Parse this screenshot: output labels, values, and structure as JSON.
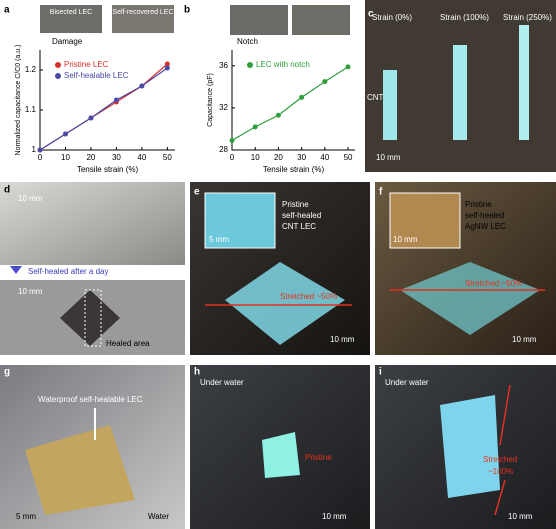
{
  "chart_data": [
    {
      "type": "line",
      "panel": "a",
      "insets": [
        "Bisected LEC",
        "Self-recovered LEC"
      ],
      "annotation": "Damage",
      "xlabel": "Tensile strain (%)",
      "ylabel": "Normalized capacitance C/C0 (a.u.)",
      "x": [
        0,
        10,
        20,
        30,
        40,
        50
      ],
      "xlim": [
        0,
        53
      ],
      "xticks": [
        0,
        10,
        20,
        30,
        40,
        50
      ],
      "ylim": [
        1,
        1.25
      ],
      "yticks": [
        1,
        1.1,
        1.2
      ],
      "legend": "upper left",
      "series": [
        {
          "name": "Pristine LEC",
          "color": "#d9302c",
          "values": [
            1,
            1.04,
            1.08,
            1.12,
            1.16,
            1.215
          ]
        },
        {
          "name": "Self-healable LEC",
          "color": "#4a4aa8",
          "values": [
            1,
            1.04,
            1.08,
            1.125,
            1.16,
            1.205
          ]
        }
      ]
    },
    {
      "type": "line",
      "panel": "b",
      "annotation": "Notch",
      "xlabel": "Tensile strain (%)",
      "ylabel": "Capacitance (pF)",
      "x": [
        0,
        10,
        20,
        30,
        40,
        50
      ],
      "xlim": [
        0,
        53
      ],
      "xticks": [
        0,
        10,
        20,
        30,
        40,
        50
      ],
      "ylim": [
        28,
        37.5
      ],
      "yticks": [
        28,
        32,
        36
      ],
      "legend": "upper left",
      "series": [
        {
          "name": "LEC with notch",
          "color": "#2e9e3a",
          "values": [
            28.9,
            30.2,
            31.3,
            33.0,
            34.5,
            35.9
          ]
        }
      ]
    }
  ],
  "photos": [
    {
      "letter": "c",
      "labels": [
        "Strain (0%)",
        "Strain (100%)",
        "Strain (250%)",
        "CNT",
        "10 mm"
      ]
    },
    {
      "letter": "d",
      "labels": [
        "10 mm",
        "Self-healed after a day",
        "10 mm",
        "Healed area"
      ]
    },
    {
      "letter": "e",
      "labels": [
        "Pristine",
        "self-healed",
        "CNT LEC",
        "5 mm",
        "Stretched ~50%",
        "10 mm"
      ]
    },
    {
      "letter": "f",
      "labels": [
        "10 mm",
        "Pristine",
        "self-healed",
        "AgNW LEC",
        "Stretched ~50%",
        "10 mm"
      ]
    },
    {
      "letter": "g",
      "labels": [
        "Waterproof self-healable LEC",
        "5 mm",
        "Water"
      ]
    },
    {
      "letter": "h",
      "labels": [
        "Under water",
        "Pristine",
        "10 mm"
      ]
    },
    {
      "letter": "i",
      "labels": [
        "Under water",
        "Stretched",
        "~100%",
        "10 mm"
      ]
    }
  ]
}
